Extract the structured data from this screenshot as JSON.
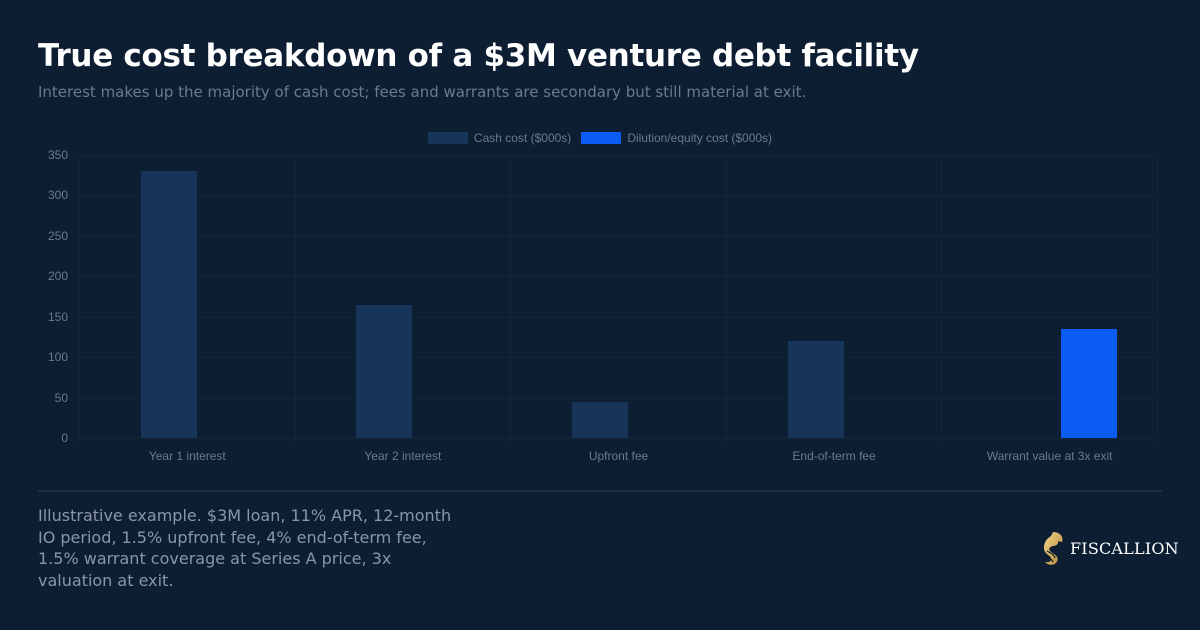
{
  "header": {
    "title": "True cost breakdown of a $3M venture debt facility",
    "subtitle": "Interest makes up the majority of cash cost; fees and warrants are secondary but still material at exit."
  },
  "legend": [
    {
      "label": "Cash cost ($000s)",
      "color": "#173558"
    },
    {
      "label": "Dilution/equity cost ($000s)",
      "color": "#0a5cf5"
    }
  ],
  "footer": {
    "note": "Illustrative example. $3M loan, 11% APR, 12-month IO period, 1.5% upfront fee, 4% end-of-term fee, 1.5% warrant coverage at Series A price, 3x valuation at exit.",
    "brand": "FISCALLION",
    "brand_icon": "horse-head-logo-icon"
  },
  "chart_data": {
    "type": "bar",
    "title": "True cost breakdown of a $3M venture debt facility",
    "subtitle": "Interest makes up the majority of cash cost; fees and warrants are secondary but still material at exit.",
    "xlabel": "",
    "ylabel": "",
    "categories": [
      "Year 1 interest",
      "Year 2 interest",
      "Upfront fee",
      "End-of-term fee",
      "Warrant value at 3x exit"
    ],
    "series": [
      {
        "name": "Cash cost ($000s)",
        "color": "#173558",
        "values": [
          330,
          165,
          45,
          120,
          0
        ]
      },
      {
        "name": "Dilution/equity cost ($000s)",
        "color": "#0a5cf5",
        "values": [
          0,
          0,
          0,
          0,
          135
        ]
      }
    ],
    "ylim": [
      0,
      350
    ],
    "yticks": [
      0,
      50,
      100,
      150,
      200,
      250,
      300,
      350
    ],
    "grid": true,
    "legend_position": "top"
  }
}
